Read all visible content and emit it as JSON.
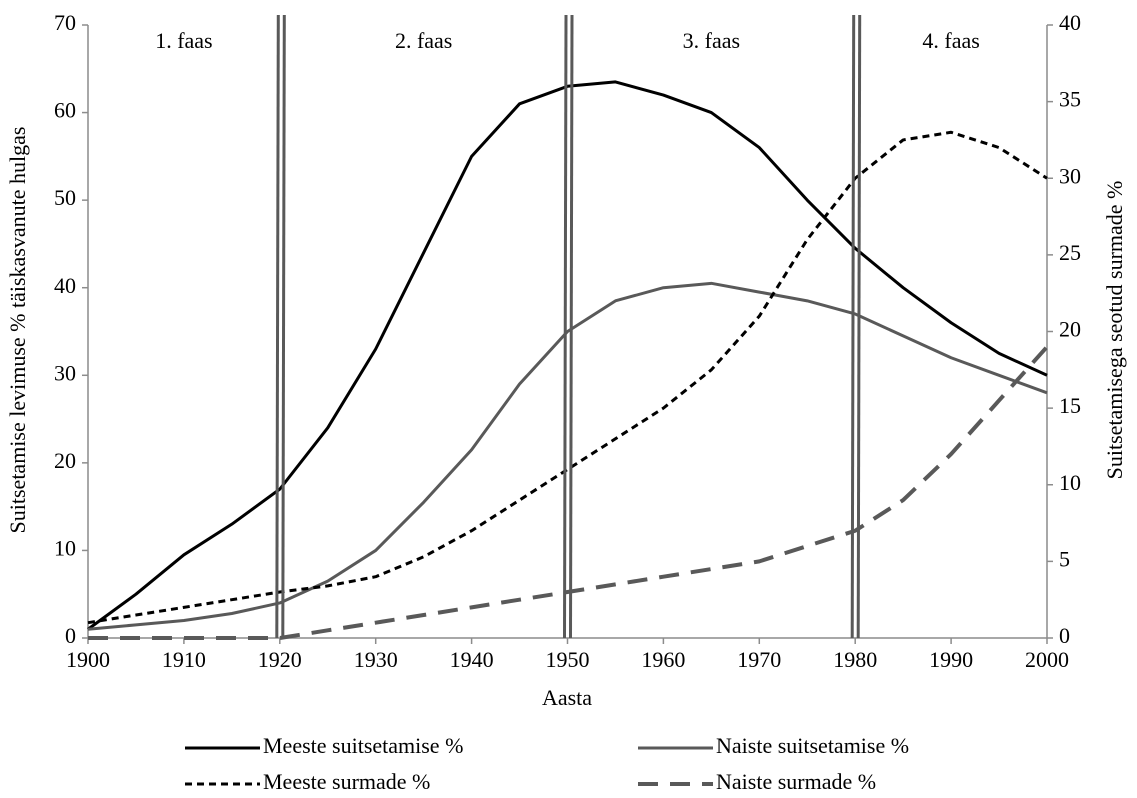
{
  "chart_data": {
    "type": "line",
    "x_label": "Aasta",
    "y_label": "Suitsetamise levimuse % täiskasvanute hulgas",
    "y2_label": "Suitsetamisega seotud surmade %",
    "x": [
      1900,
      1905,
      1910,
      1915,
      1920,
      1925,
      1930,
      1935,
      1940,
      1945,
      1950,
      1955,
      1960,
      1965,
      1970,
      1975,
      1980,
      1985,
      1990,
      1995,
      2000
    ],
    "series": [
      {
        "name": "Meeste suitsetamise %",
        "color": "#000000",
        "dash": "solid",
        "axis": "y",
        "values": [
          1,
          5,
          9.5,
          13,
          17,
          24,
          33,
          44,
          55,
          61,
          63,
          63.5,
          62,
          60,
          56,
          50,
          44.5,
          40,
          36,
          32.5,
          30
        ]
      },
      {
        "name": "Naiste suitsetamise %",
        "color": "#595959",
        "dash": "solid",
        "axis": "y",
        "values": [
          1,
          1.5,
          2,
          2.8,
          4,
          6.5,
          10,
          15.5,
          21.5,
          29,
          35,
          38.5,
          40,
          40.5,
          39.5,
          38.5,
          37,
          34.5,
          32,
          30,
          28
        ]
      },
      {
        "name": "Meeste surmade %",
        "color": "#000000",
        "dash": "dotted",
        "axis": "y2",
        "values": [
          1,
          1.5,
          2,
          2.5,
          3,
          3.4,
          4,
          5.3,
          7,
          9,
          11,
          13,
          15,
          17.5,
          21,
          26,
          30,
          32.5,
          33,
          32,
          30
        ]
      },
      {
        "name": "Naiste surmade %",
        "color": "#595959",
        "dash": "dashed",
        "axis": "y2",
        "values": [
          0,
          0,
          0,
          0,
          0,
          0.5,
          1,
          1.5,
          2,
          2.5,
          3,
          3.5,
          4,
          4.5,
          5,
          6,
          7,
          9,
          12,
          15.5,
          19
        ]
      }
    ],
    "phase_lines": [
      1920,
      1950,
      1980
    ],
    "phases": [
      "1. faas",
      "2. faas",
      "3. faas",
      "4. faas"
    ],
    "xlim": [
      1900,
      2000
    ],
    "xticks": [
      1900,
      1910,
      1920,
      1930,
      1940,
      1950,
      1960,
      1970,
      1980,
      1990,
      2000
    ],
    "ylim": [
      0,
      70
    ],
    "yticks": [
      0,
      10,
      20,
      30,
      40,
      50,
      60,
      70
    ],
    "y2lim": [
      0,
      40
    ],
    "y2ticks": [
      0,
      5,
      10,
      15,
      20,
      25,
      30,
      35,
      40
    ],
    "grid": false,
    "legend": "bottom"
  }
}
